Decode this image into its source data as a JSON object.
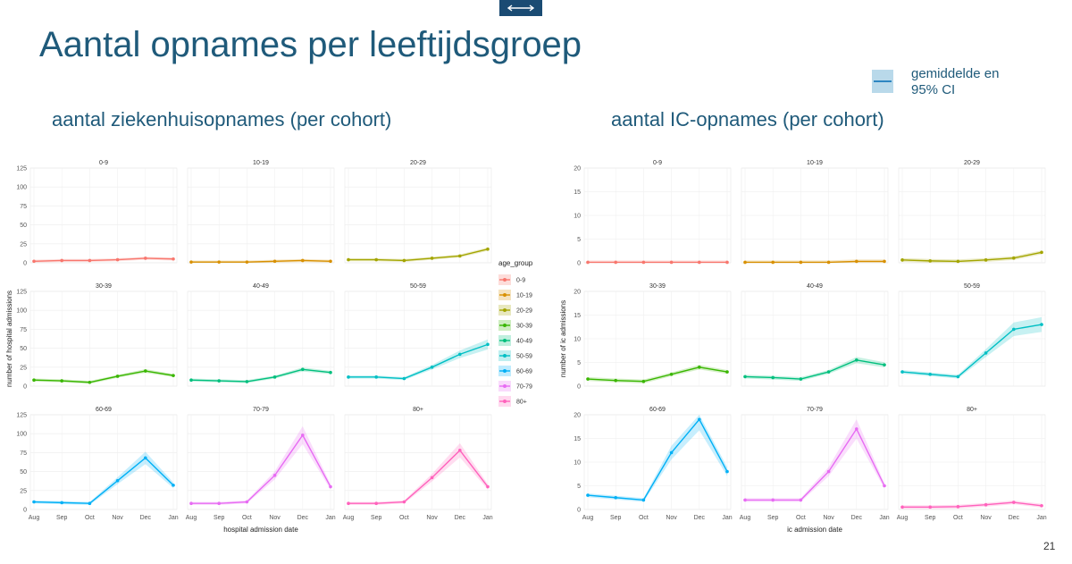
{
  "slide": {
    "title": "Aantal opnames per leeftijdsgroep",
    "legend_label_line1": "gemiddelde en",
    "legend_label_line2": "95% CI",
    "page_number": "21",
    "accent_color": "#1f5a7a"
  },
  "chart_data": [
    {
      "type": "line",
      "subtitle": "aantal ziekenhuisopnames (per cohort)",
      "xlabel": "hospital admission date",
      "ylabel": "number of hospital admissions",
      "x_ticks": [
        "Aug",
        "Sep",
        "Oct",
        "Nov",
        "Dec",
        "Jan"
      ],
      "ylim": [
        0,
        125
      ],
      "y_ticks": [
        0,
        25,
        50,
        75,
        100,
        125
      ],
      "grid": true,
      "legend_title": "age_group",
      "legend_position": "right",
      "x": [
        "Aug",
        "Sep",
        "Oct",
        "Nov",
        "Dec",
        "Jan"
      ],
      "series": [
        {
          "name": "0-9",
          "color": "#f8766d",
          "values": [
            2,
            3,
            3,
            4,
            6,
            5
          ]
        },
        {
          "name": "10-19",
          "color": "#d89000",
          "values": [
            1,
            1,
            1,
            2,
            3,
            2
          ]
        },
        {
          "name": "20-29",
          "color": "#a3a500",
          "values": [
            4,
            4,
            3,
            6,
            9,
            18
          ]
        },
        {
          "name": "30-39",
          "color": "#39b600",
          "values": [
            8,
            7,
            5,
            13,
            20,
            14
          ]
        },
        {
          "name": "40-49",
          "color": "#00bf7d",
          "values": [
            8,
            7,
            6,
            12,
            22,
            18
          ]
        },
        {
          "name": "50-59",
          "color": "#00bfc4",
          "values": [
            12,
            12,
            10,
            25,
            42,
            55
          ]
        },
        {
          "name": "60-69",
          "color": "#00b0f6",
          "values": [
            10,
            9,
            8,
            38,
            68,
            32
          ]
        },
        {
          "name": "70-79",
          "color": "#e76bf3",
          "values": [
            8,
            8,
            10,
            45,
            98,
            30
          ]
        },
        {
          "name": "80+",
          "color": "#ff62bc",
          "values": [
            8,
            8,
            10,
            42,
            78,
            30
          ]
        }
      ]
    },
    {
      "type": "line",
      "subtitle": "aantal IC-opnames (per cohort)",
      "xlabel": "ic admission date",
      "ylabel": "number of ic admissions",
      "x_ticks": [
        "Aug",
        "Sep",
        "Oct",
        "Nov",
        "Dec",
        "Jan"
      ],
      "ylim": [
        0,
        20
      ],
      "y_ticks": [
        0,
        5,
        10,
        15,
        20
      ],
      "grid": true,
      "x": [
        "Aug",
        "Sep",
        "Oct",
        "Nov",
        "Dec",
        "Jan"
      ],
      "series": [
        {
          "name": "0-9",
          "color": "#f8766d",
          "values": [
            0.1,
            0.1,
            0.1,
            0.1,
            0.1,
            0.1
          ]
        },
        {
          "name": "10-19",
          "color": "#d89000",
          "values": [
            0.1,
            0.1,
            0.1,
            0.1,
            0.3,
            0.3
          ]
        },
        {
          "name": "20-29",
          "color": "#a3a500",
          "values": [
            0.6,
            0.4,
            0.3,
            0.6,
            1.0,
            2.2
          ]
        },
        {
          "name": "30-39",
          "color": "#39b600",
          "values": [
            1.5,
            1.2,
            1.0,
            2.5,
            4,
            3
          ]
        },
        {
          "name": "40-49",
          "color": "#00bf7d",
          "values": [
            2,
            1.8,
            1.5,
            3,
            5.5,
            4.5
          ]
        },
        {
          "name": "50-59",
          "color": "#00bfc4",
          "values": [
            3,
            2.5,
            2,
            7,
            12,
            13
          ]
        },
        {
          "name": "60-69",
          "color": "#00b0f6",
          "values": [
            3,
            2.5,
            2,
            12,
            19,
            8
          ]
        },
        {
          "name": "70-79",
          "color": "#e76bf3",
          "values": [
            2,
            2,
            2,
            8,
            17,
            5
          ]
        },
        {
          "name": "80+",
          "color": "#ff62bc",
          "values": [
            0.5,
            0.5,
            0.6,
            1,
            1.5,
            0.8
          ]
        }
      ]
    }
  ]
}
